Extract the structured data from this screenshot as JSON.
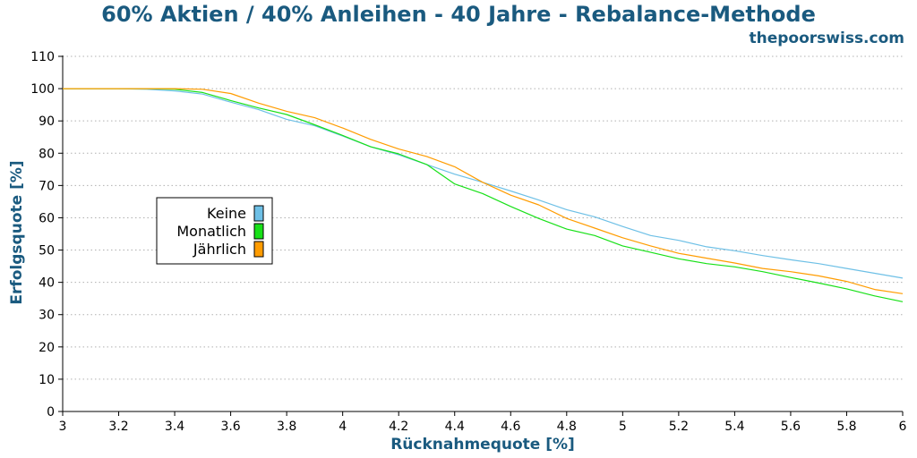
{
  "header": {
    "title": "60% Aktien / 40% Anleihen - 40 Jahre - Rebalance-Methode",
    "site": "thepoorswiss.com"
  },
  "colors": {
    "title": "#1a5a7f",
    "Keine": "#6ec0e6",
    "Monatlich": "#18e018",
    "Jährlich": "#ff9c00",
    "grid": "#b0b0b0"
  },
  "chart_data": {
    "type": "line",
    "title": "60% Aktien / 40% Anleihen - 40 Jahre - Rebalance-Methode",
    "xlabel": "Rücknahmequote [%]",
    "ylabel": "Erfolgsquote [%]",
    "xlim": [
      3,
      6
    ],
    "ylim": [
      0,
      110
    ],
    "xticks": [
      "3",
      "3.2",
      "3.4",
      "3.6",
      "3.8",
      "4",
      "4.2",
      "4.4",
      "4.6",
      "4.8",
      "5",
      "5.2",
      "5.4",
      "5.6",
      "5.8",
      "6"
    ],
    "yticks": [
      "0",
      "10",
      "20",
      "30",
      "40",
      "50",
      "60",
      "70",
      "80",
      "90",
      "100",
      "110"
    ],
    "grid": "horizontal dotted",
    "legend_position": "left-center",
    "x": [
      3.0,
      3.1,
      3.2,
      3.3,
      3.4,
      3.5,
      3.6,
      3.7,
      3.8,
      3.9,
      4.0,
      4.1,
      4.2,
      4.3,
      4.4,
      4.5,
      4.6,
      4.7,
      4.8,
      4.9,
      5.0,
      5.1,
      5.2,
      5.3,
      5.4,
      5.5,
      5.6,
      5.7,
      5.8,
      5.9,
      6.0
    ],
    "series": [
      {
        "name": "Keine",
        "values": [
          100,
          100,
          100,
          99.8,
          99.3,
          98.3,
          95.8,
          93.5,
          90.5,
          88.5,
          85.3,
          82.0,
          79.5,
          76.5,
          73.5,
          71.0,
          68.3,
          65.5,
          62.5,
          60.3,
          57.3,
          54.5,
          53.0,
          51.0,
          49.8,
          48.3,
          47.0,
          45.8,
          44.3,
          42.8,
          41.3
        ]
      },
      {
        "name": "Monatlich",
        "values": [
          100,
          100,
          100,
          100,
          99.8,
          98.8,
          96.3,
          94.0,
          92.0,
          88.8,
          85.5,
          82.0,
          79.8,
          76.5,
          70.5,
          67.5,
          63.5,
          59.8,
          56.5,
          54.5,
          51.3,
          49.3,
          47.3,
          45.8,
          44.8,
          43.3,
          41.5,
          39.8,
          38.0,
          35.8,
          34.0
        ]
      },
      {
        "name": "Jährlich",
        "values": [
          100,
          100,
          100,
          100,
          100,
          99.8,
          98.5,
          95.5,
          93.0,
          91.0,
          87.8,
          84.3,
          81.3,
          79.0,
          75.8,
          71.0,
          67.0,
          64.0,
          59.8,
          56.8,
          53.8,
          51.3,
          49.0,
          47.5,
          46.0,
          44.3,
          43.3,
          42.0,
          40.3,
          37.8,
          36.5
        ]
      }
    ]
  }
}
